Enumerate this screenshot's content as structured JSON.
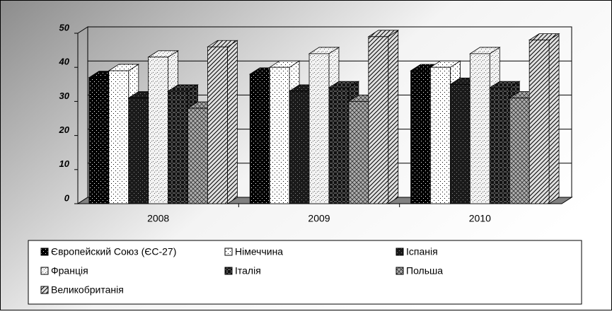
{
  "chart_data": {
    "type": "bar3d",
    "categories": [
      "2008",
      "2009",
      "2010"
    ],
    "series": [
      {
        "name": "Європейский Союз (ЄС-27)",
        "color": "#000000",
        "values": [
          37,
          38,
          39
        ]
      },
      {
        "name": "Німеччина",
        "color": "#ffffff",
        "values": [
          39,
          40,
          40
        ]
      },
      {
        "name": "Іспанія",
        "color": "#1a1a1a",
        "values": [
          31,
          33,
          35
        ]
      },
      {
        "name": "Франція",
        "color": "#f2f2f2",
        "values": [
          43,
          44,
          44
        ]
      },
      {
        "name": "Італія",
        "color": "#505050",
        "values": [
          33,
          34,
          34
        ]
      },
      {
        "name": "Польша",
        "color": "#b0b0b0",
        "values": [
          28,
          30,
          31
        ]
      },
      {
        "name": "Великобританія",
        "color": "#e0e0e0",
        "values": [
          46,
          49,
          48
        ]
      }
    ],
    "ylim": [
      0,
      50
    ],
    "yticks": [
      0,
      10,
      20,
      30,
      40,
      50
    ],
    "grid": true,
    "legend": "bottom"
  }
}
